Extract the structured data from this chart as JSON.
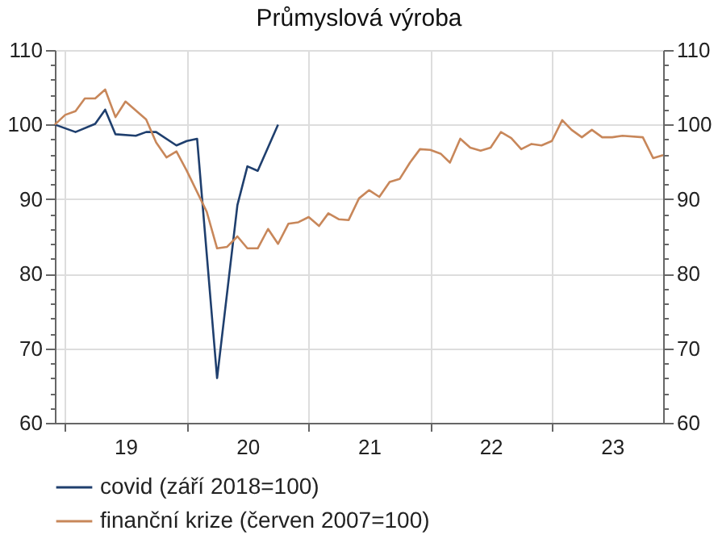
{
  "chart_data": {
    "type": "line",
    "title": "Průmyslová výroba",
    "xlim": [
      "2018-12",
      "2023-12"
    ],
    "xticks": [
      {
        "value": "2019-01",
        "label": null
      },
      {
        "value": "2019-07",
        "label": "19"
      },
      {
        "value": "2020-01",
        "label": null
      },
      {
        "value": "2020-07",
        "label": "20"
      },
      {
        "value": "2021-01",
        "label": null
      },
      {
        "value": "2021-07",
        "label": "21"
      },
      {
        "value": "2022-01",
        "label": null
      },
      {
        "value": "2022-07",
        "label": "22"
      },
      {
        "value": "2023-01",
        "label": null
      },
      {
        "value": "2023-07",
        "label": "23"
      }
    ],
    "ylim": [
      60,
      110
    ],
    "yticks": [
      60,
      {
        "value": 62,
        "label": null
      },
      {
        "value": 64,
        "label": null
      },
      {
        "value": 66,
        "label": null
      },
      {
        "value": 68,
        "label": null
      },
      70,
      {
        "value": 72,
        "label": null
      },
      {
        "value": 74,
        "label": null
      },
      {
        "value": 76,
        "label": null
      },
      {
        "value": 78,
        "label": null
      },
      80,
      {
        "value": 82,
        "label": null
      },
      {
        "value": 84,
        "label": null
      },
      {
        "value": 86,
        "label": null
      },
      {
        "value": 88,
        "label": null
      },
      90,
      {
        "value": 92,
        "label": null
      },
      {
        "value": 94,
        "label": null
      },
      {
        "value": 96,
        "label": null
      },
      {
        "value": 98,
        "label": null
      },
      100,
      {
        "value": 102,
        "label": null
      },
      {
        "value": 104,
        "label": null
      },
      {
        "value": 106,
        "label": null
      },
      {
        "value": 108,
        "label": null
      },
      110
    ],
    "y2lim": [
      60,
      110
    ],
    "y2ticks": [
      60,
      {
        "value": 62,
        "label": null
      },
      {
        "value": 64,
        "label": null
      },
      {
        "value": 66,
        "label": null
      },
      {
        "value": 68,
        "label": null
      },
      70,
      {
        "value": 72,
        "label": null
      },
      {
        "value": 74,
        "label": null
      },
      {
        "value": 76,
        "label": null
      },
      {
        "value": 78,
        "label": null
      },
      80,
      {
        "value": 82,
        "label": null
      },
      {
        "value": 84,
        "label": null
      },
      {
        "value": 86,
        "label": null
      },
      {
        "value": 88,
        "label": null
      },
      90,
      {
        "value": 92,
        "label": null
      },
      {
        "value": 94,
        "label": null
      },
      {
        "value": 96,
        "label": null
      },
      {
        "value": 98,
        "label": null
      },
      100,
      {
        "value": 102,
        "label": null
      },
      {
        "value": 104,
        "label": null
      },
      {
        "value": 106,
        "label": null
      },
      {
        "value": 108,
        "label": null
      },
      110
    ],
    "grid": true,
    "legend": "bottom",
    "line_style": "solid",
    "series": [
      {
        "name": "covid (září 2018=100)",
        "color": "#1f3f6e",
        "x": [
          "2018-12",
          "2019-02",
          "2019-04",
          "2019-05",
          "2019-06",
          "2019-08",
          "2019-09",
          "2019-10",
          "2019-12",
          "2020-01",
          "2020-02",
          "2020-04",
          "2020-06",
          "2020-07",
          "2020-08",
          "2020-10"
        ],
        "values": [
          100.0,
          99.0,
          100.1,
          102.0,
          98.7,
          98.5,
          99.0,
          99.0,
          97.2,
          97.8,
          98.1,
          66.0,
          89.2,
          94.4,
          93.8,
          100.0
        ]
      },
      {
        "name": "finanční krize (červen  2007=100)",
        "color": "#c8875a",
        "axis": "y2",
        "x": [
          "2018-12",
          "2019-01",
          "2019-02",
          "2019-03",
          "2019-04",
          "2019-05",
          "2019-06",
          "2019-07",
          "2019-09",
          "2019-10",
          "2019-11",
          "2019-12",
          "2020-01",
          "2020-03",
          "2020-04",
          "2020-05",
          "2020-06",
          "2020-07",
          "2020-08",
          "2020-09",
          "2020-10",
          "2020-11",
          "2020-12",
          "2021-01",
          "2021-02",
          "2021-03",
          "2021-04",
          "2021-05",
          "2021-06",
          "2021-07",
          "2021-08",
          "2021-09",
          "2021-10",
          "2021-11",
          "2021-12",
          "2022-01",
          "2022-02",
          "2022-03",
          "2022-04",
          "2022-05",
          "2022-06",
          "2022-07",
          "2022-08",
          "2022-09",
          "2022-10",
          "2022-11",
          "2022-12",
          "2023-01",
          "2023-02",
          "2023-03",
          "2023-04",
          "2023-05",
          "2023-06",
          "2023-07",
          "2023-08",
          "2023-10",
          "2023-11",
          "2023-12"
        ],
        "values": [
          100.0,
          101.3,
          101.8,
          103.5,
          103.5,
          104.7,
          101.0,
          103.1,
          100.7,
          97.6,
          95.6,
          96.4,
          93.8,
          88.3,
          83.4,
          83.6,
          85.0,
          83.4,
          83.4,
          86.0,
          84.0,
          86.7,
          86.9,
          87.6,
          86.4,
          88.1,
          87.3,
          87.2,
          90.1,
          91.2,
          90.3,
          92.3,
          92.7,
          94.9,
          96.7,
          96.6,
          96.1,
          94.9,
          98.1,
          96.9,
          96.5,
          96.9,
          99.0,
          98.2,
          96.7,
          97.4,
          97.2,
          97.8,
          100.6,
          99.3,
          98.3,
          99.3,
          98.3,
          98.3,
          98.5,
          98.3,
          95.5,
          95.9
        ]
      }
    ]
  }
}
